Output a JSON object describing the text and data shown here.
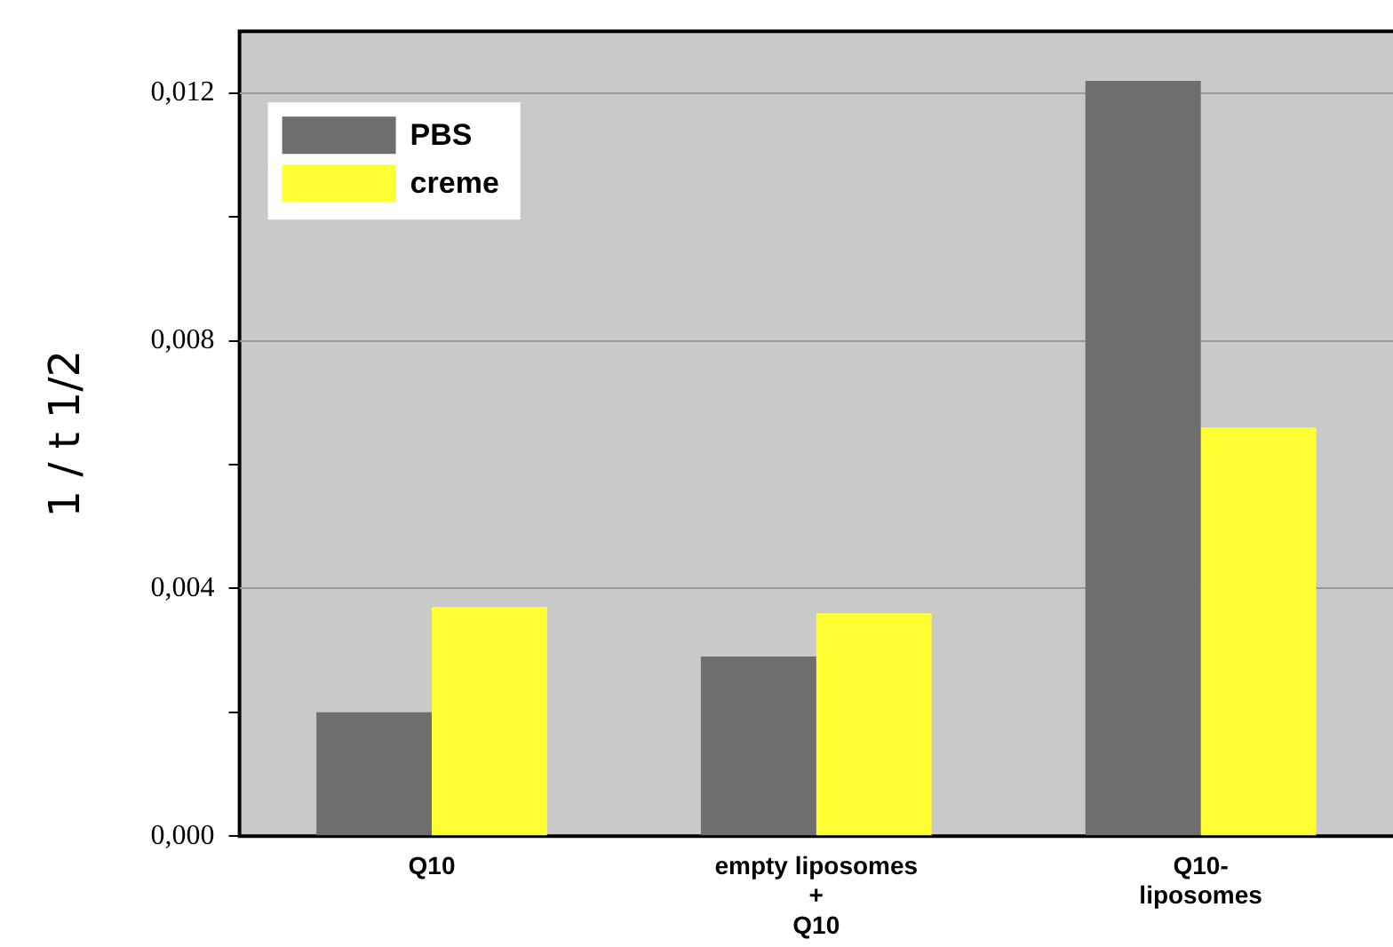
{
  "chart_data": {
    "type": "bar",
    "ylabel": "1 / t 1/2",
    "categories": [
      "Q10",
      "empty liposomes\n+\nQ10",
      "Q10-\nliposomes"
    ],
    "series": [
      {
        "name": "PBS",
        "color": "#6e6e6e",
        "values": [
          0.002,
          0.0029,
          0.0122
        ]
      },
      {
        "name": "creme",
        "color": "#ffff33",
        "values": [
          0.0037,
          0.0036,
          0.0066
        ]
      }
    ],
    "ylim": [
      0,
      0.013
    ],
    "yticks": [
      {
        "value": 0,
        "label": "0,000"
      },
      {
        "value": 0.002,
        "label": null
      },
      {
        "value": 0.004,
        "label": "0,004"
      },
      {
        "value": 0.006,
        "label": null
      },
      {
        "value": 0.008,
        "label": "0,008"
      },
      {
        "value": 0.01,
        "label": null
      },
      {
        "value": 0.012,
        "label": "0,012"
      }
    ],
    "grid": "y",
    "legend": "top left"
  }
}
